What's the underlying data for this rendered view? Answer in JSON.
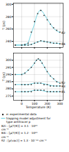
{
  "chart_data": [
    {
      "type": "line",
      "ylabel": "T (ps)",
      "xlim": [
        -65,
        325
      ],
      "xticks": [
        0,
        100,
        200,
        300
      ],
      "ylim": [
        230,
        302
      ],
      "yticks": [
        240,
        260,
        280,
        300
      ],
      "grid": true,
      "tick_labels": "y",
      "series": [
        {
          "type": "scatter",
          "name": "e: experimental data",
          "marker": "square",
          "color": "#333333",
          "x": [
            -50,
            0,
            25,
            50,
            75,
            100,
            125,
            150,
            175,
            200,
            225,
            250,
            275,
            300
          ],
          "values": [
            234,
            234,
            235,
            237,
            255,
            272,
            285,
            290,
            282,
            275,
            268,
            262,
            258,
            255
          ]
        },
        {
          "type": "scatter",
          "name": "e: experimental data",
          "marker": "square",
          "color": "#333333",
          "x": [
            -50,
            0,
            25,
            50,
            75,
            100,
            125,
            150,
            175,
            200,
            225,
            250,
            275,
            300
          ],
          "values": [
            234,
            234,
            234,
            234,
            235,
            237,
            239,
            241,
            240,
            239,
            238,
            237,
            237,
            236
          ]
        },
        {
          "type": "line",
          "name": "trapping model adjustment for\ntype antitracer p",
          "label": "θ2",
          "color": "#55ccdd",
          "x": [
            -50,
            0,
            25,
            50,
            75,
            100,
            115,
            130,
            145,
            160,
            180,
            200,
            225,
            250,
            275,
            300
          ],
          "values": [
            234,
            234,
            235,
            237,
            253,
            268,
            280,
            287,
            291,
            289,
            283,
            276,
            268,
            261,
            257,
            254
          ]
        },
        {
          "type": "line",
          "name": "trapping model adjustment for\ntype antitracer p",
          "label": "θ4",
          "color": "#55ccdd",
          "x": [
            -50,
            0,
            25,
            50,
            75,
            100,
            125,
            150,
            175,
            200,
            225,
            250,
            275,
            300
          ],
          "values": [
            234,
            234,
            234,
            234,
            235,
            237,
            239,
            241,
            240,
            239,
            238,
            237,
            237,
            236
          ]
        }
      ]
    },
    {
      "type": "line",
      "ylabel": "T (ps)",
      "xlabel": "Temperature (K)",
      "xlim": [
        -65,
        325
      ],
      "xticks": [
        0,
        100,
        200,
        300
      ],
      "ylim": [
        272,
        305
      ],
      "yticks": [
        275,
        280,
        285,
        290,
        295,
        300
      ],
      "grid": true,
      "legend": "bottom",
      "series": [
        {
          "type": "scatter",
          "name": "e: experimental data",
          "marker": "square",
          "color": "#333333",
          "x": [
            -50,
            0,
            25,
            50,
            75,
            100,
            115,
            130,
            145,
            160,
            180,
            200,
            225,
            250,
            275,
            300
          ],
          "values": [
            290,
            290,
            291,
            293,
            295,
            298,
            300,
            301,
            300,
            298,
            295,
            292,
            289,
            287,
            285,
            284
          ]
        },
        {
          "type": "scatter",
          "name": "e: experimental data",
          "marker": "square",
          "color": "#333333",
          "x": [
            -50,
            0,
            25,
            50,
            75,
            100,
            125,
            150,
            175,
            200,
            225,
            250,
            275,
            300
          ],
          "values": [
            283,
            283,
            283,
            283,
            283,
            284,
            284,
            284,
            283,
            283,
            282,
            282,
            282,
            282
          ]
        },
        {
          "type": "scatter",
          "name": "e: experimental data",
          "marker": "square",
          "color": "#333333",
          "x": [
            -50,
            0,
            25,
            50,
            75,
            100,
            125,
            150,
            175,
            200,
            225,
            250,
            275,
            300
          ],
          "values": [
            278,
            278,
            278,
            278,
            278,
            279,
            279,
            279,
            279,
            278,
            278,
            278,
            278,
            278
          ]
        },
        {
          "type": "line",
          "name": "trapping model adjustment for\ntype antitracer p",
          "label": "θ2",
          "color": "#55ccdd",
          "x": [
            -50,
            0,
            25,
            50,
            75,
            100,
            115,
            130,
            145,
            160,
            180,
            200,
            225,
            250,
            275,
            300
          ],
          "values": [
            290,
            290,
            291,
            293,
            295,
            298,
            300,
            301,
            300,
            298,
            295,
            292,
            289,
            287,
            285,
            284
          ]
        },
        {
          "type": "line",
          "name": "trapping model adjustment for\ntype antitracer p",
          "label": "θ3",
          "color": "#55ccdd",
          "x": [
            -50,
            0,
            25,
            50,
            100,
            150,
            200,
            250,
            300
          ],
          "values": [
            283,
            283,
            283,
            283,
            284,
            284,
            283,
            282,
            282
          ]
        },
        {
          "type": "line",
          "name": "trapping model adjustment for\ntype antitracer p",
          "label": "θ1",
          "color": "#55ccdd",
          "x": [
            -50,
            0,
            25,
            50,
            100,
            150,
            200,
            250,
            300
          ],
          "values": [
            278,
            278,
            278,
            278,
            279,
            279,
            278,
            278,
            278
          ]
        }
      ],
      "annotations": [
        "B2i : [μ(T/K)] = 3.1 · 10¹⁹",
        "cm⁻³",
        "B4i : [μ(T/K)] = 1.2 · 10¹⁹",
        "cm⁻³",
        "θ2 : [ρ(vac)] = 1.3 · 10⁻²⁰ cm⁻³"
      ]
    }
  ]
}
